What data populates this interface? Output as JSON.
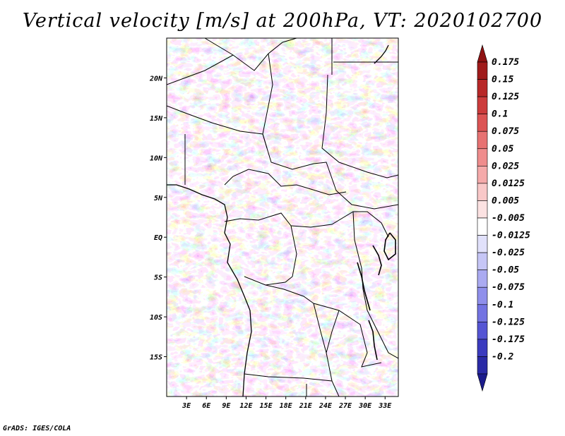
{
  "title": "Vertical velocity [m/s] at 200hPa, VT: 2020102700",
  "credit": "GrADS: IGES/COLA",
  "map": {
    "lon_range": [
      0,
      35
    ],
    "lat_range": [
      -20,
      25
    ],
    "lat_ticks": [
      "20N",
      "15N",
      "10N",
      "5N",
      "EQ",
      "5S",
      "10S",
      "15S"
    ],
    "lon_ticks": [
      "3E",
      "6E",
      "9E",
      "12E",
      "15E",
      "18E",
      "21E",
      "24E",
      "27E",
      "30E",
      "33E"
    ]
  },
  "colorbar": {
    "levels": [
      {
        "label": "0.175",
        "color": "#a01b1b"
      },
      {
        "label": "0.15",
        "color": "#b82828"
      },
      {
        "label": "0.125",
        "color": "#cc3c3c"
      },
      {
        "label": "0.1",
        "color": "#dc5454"
      },
      {
        "label": "0.075",
        "color": "#e77272"
      },
      {
        "label": "0.05",
        "color": "#ef8d8d"
      },
      {
        "label": "0.025",
        "color": "#f5aaaa"
      },
      {
        "label": "0.0125",
        "color": "#f9c8c8"
      },
      {
        "label": "0.005",
        "color": "#fce2e2"
      },
      {
        "label": "-0.005",
        "color": "#ffffff"
      },
      {
        "label": "-0.0125",
        "color": "#e1e1fb"
      },
      {
        "label": "-0.025",
        "color": "#c6c6f6"
      },
      {
        "label": "-0.05",
        "color": "#aaaaf1"
      },
      {
        "label": "-0.075",
        "color": "#8f8feb"
      },
      {
        "label": "-0.1",
        "color": "#7373e2"
      },
      {
        "label": "-0.125",
        "color": "#5555d4"
      },
      {
        "label": "-0.175",
        "color": "#3b3bbf"
      },
      {
        "label": "-0.2",
        "color": "#2a2aa6"
      }
    ],
    "top_arrow_color": "#8e1212",
    "bottom_arrow_color": "#1c1c8c"
  }
}
